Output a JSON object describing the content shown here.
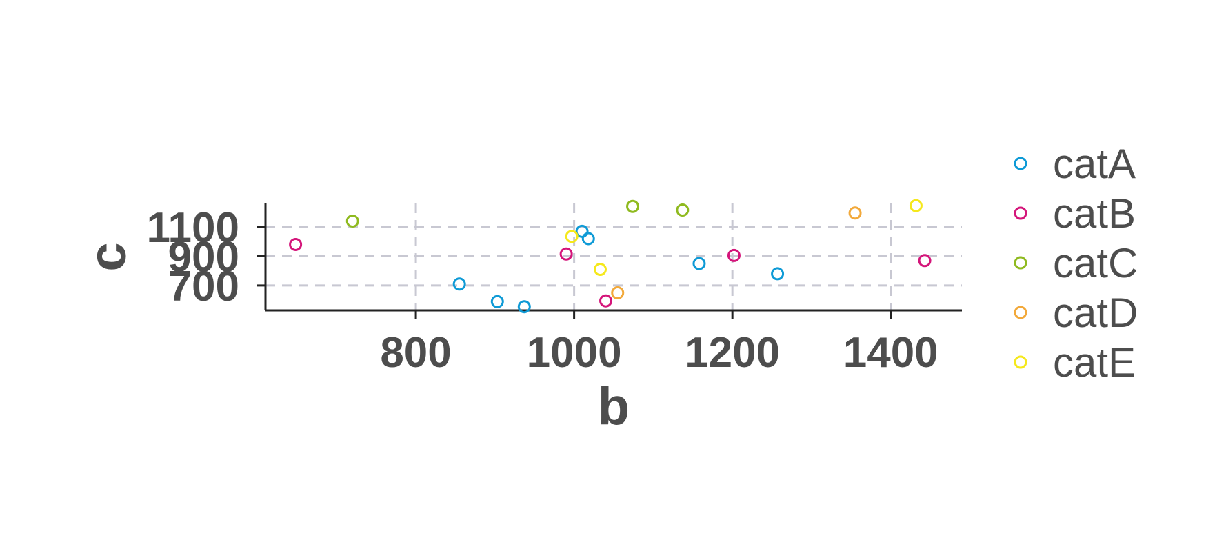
{
  "chart_data": {
    "type": "scatter",
    "title": "",
    "xlabel": "b",
    "ylabel": "c",
    "xlim": [
      610,
      1490
    ],
    "ylim": [
      530,
      1260
    ],
    "xticks": [
      800,
      1000,
      1200,
      1400
    ],
    "yticks": [
      700,
      900,
      1100
    ],
    "grid": true,
    "legend_position": "right",
    "series": [
      {
        "name": "catA",
        "color": "#0e9ad6",
        "points": [
          [
            855,
            710
          ],
          [
            903,
            590
          ],
          [
            937,
            555
          ],
          [
            1010,
            1070
          ],
          [
            1018,
            1020
          ],
          [
            1158,
            850
          ],
          [
            1257,
            780
          ]
        ]
      },
      {
        "name": "catB",
        "color": "#d4157a",
        "points": [
          [
            648,
            980
          ],
          [
            990,
            915
          ],
          [
            1040,
            595
          ],
          [
            1202,
            905
          ],
          [
            1443,
            870
          ]
        ]
      },
      {
        "name": "catC",
        "color": "#8fba1f",
        "points": [
          [
            720,
            1140
          ],
          [
            1074,
            1240
          ],
          [
            1137,
            1215
          ]
        ]
      },
      {
        "name": "catD",
        "color": "#f2a93b",
        "points": [
          [
            1055,
            650
          ],
          [
            1355,
            1195
          ]
        ]
      },
      {
        "name": "catE",
        "color": "#f5e81c",
        "points": [
          [
            997,
            1035
          ],
          [
            1033,
            810
          ],
          [
            1432,
            1245
          ]
        ]
      }
    ]
  }
}
